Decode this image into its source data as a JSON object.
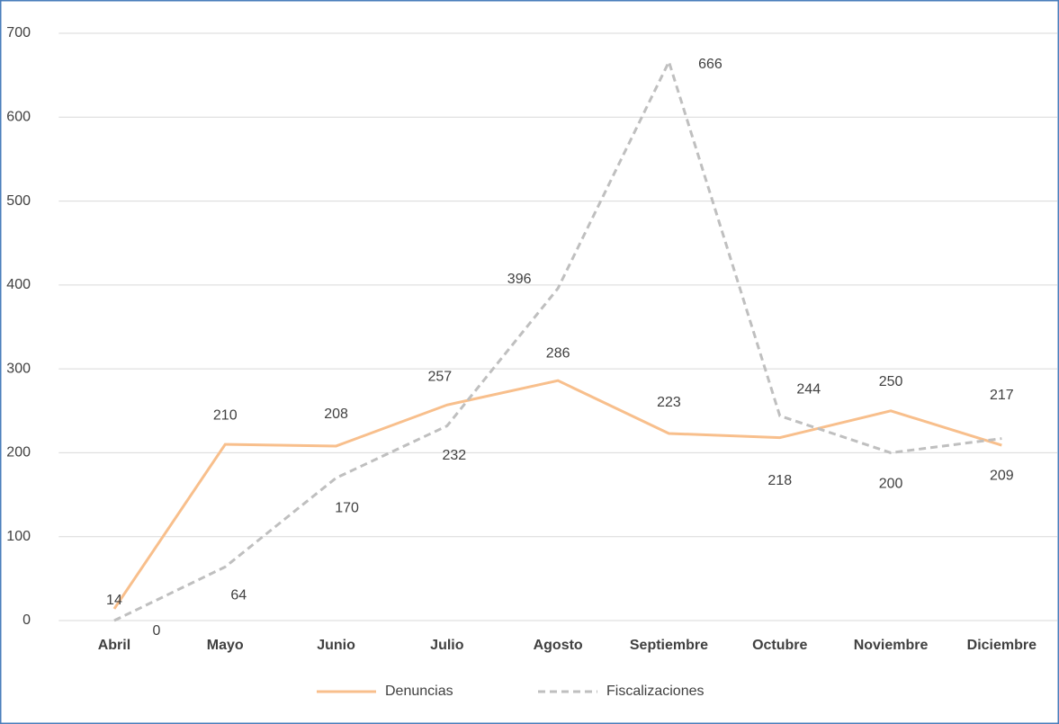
{
  "chart_data": {
    "type": "line",
    "categories": [
      "Abril",
      "Mayo",
      "Junio",
      "Julio",
      "Agosto",
      "Septiembre",
      "Octubre",
      "Noviembre",
      "Diciembre"
    ],
    "series": [
      {
        "name": "Denuncias",
        "color": "#f8bf8c",
        "dash": false,
        "values": [
          14,
          210,
          208,
          257,
          286,
          223,
          218,
          250,
          209
        ]
      },
      {
        "name": "Fiscalizaciones",
        "color": "#bfbfbf",
        "dash": true,
        "values": [
          0,
          64,
          170,
          232,
          396,
          666,
          244,
          200,
          217
        ]
      }
    ],
    "ylim": [
      0,
      700
    ],
    "yticks": [
      0,
      100,
      200,
      300,
      400,
      500,
      600,
      700
    ],
    "grid": true,
    "legend": "bottom"
  }
}
